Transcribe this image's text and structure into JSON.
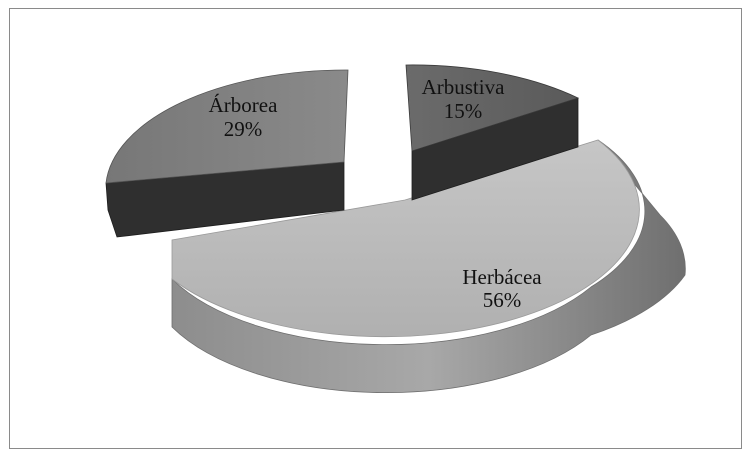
{
  "chart_data": {
    "type": "pie",
    "style": "3d-exploded",
    "title": "",
    "slices": [
      {
        "label": "Árborea",
        "value": 29,
        "value_label": "29%",
        "color": "#7a7a7a"
      },
      {
        "label": "Arbustiva",
        "value": 15,
        "value_label": "15%",
        "color": "#5a5a5a"
      },
      {
        "label": "Herbácea",
        "value": 56,
        "value_label": "56%",
        "color": "#b9b9b9"
      }
    ],
    "legend": "none"
  }
}
